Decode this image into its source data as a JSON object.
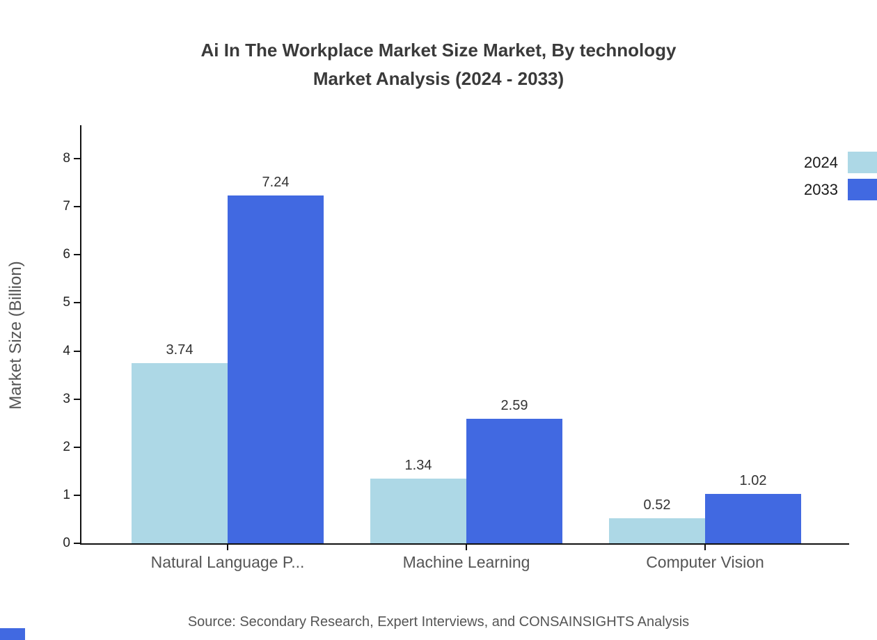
{
  "header": {
    "title_line1": "Ai In The Workplace Market Size Market, By technology",
    "title_line2": "Market Analysis (2024 - 2033)"
  },
  "chart_data": {
    "type": "bar",
    "title": "Ai In The Workplace Market Size Market, By technology Market Analysis (2024 - 2033)",
    "categories": [
      "Natural Language P...",
      "Machine Learning",
      "Computer Vision"
    ],
    "series": [
      {
        "name": "2024",
        "color": "#add8e6",
        "values": [
          3.74,
          1.34,
          0.52
        ]
      },
      {
        "name": "2033",
        "color": "#4169e1",
        "values": [
          7.24,
          2.59,
          1.02
        ]
      }
    ],
    "xlabel": "",
    "ylabel": "Market Size (Billion)",
    "ylim": [
      0,
      8.7
    ],
    "yticks": [
      0,
      1,
      2,
      3,
      4,
      5,
      6,
      7,
      8
    ],
    "grid": false,
    "legend_position": "top-right",
    "value_labels": true
  },
  "footer": {
    "source": "Source: Secondary Research, Expert Interviews, and CONSAINSIGHTS Analysis"
  }
}
